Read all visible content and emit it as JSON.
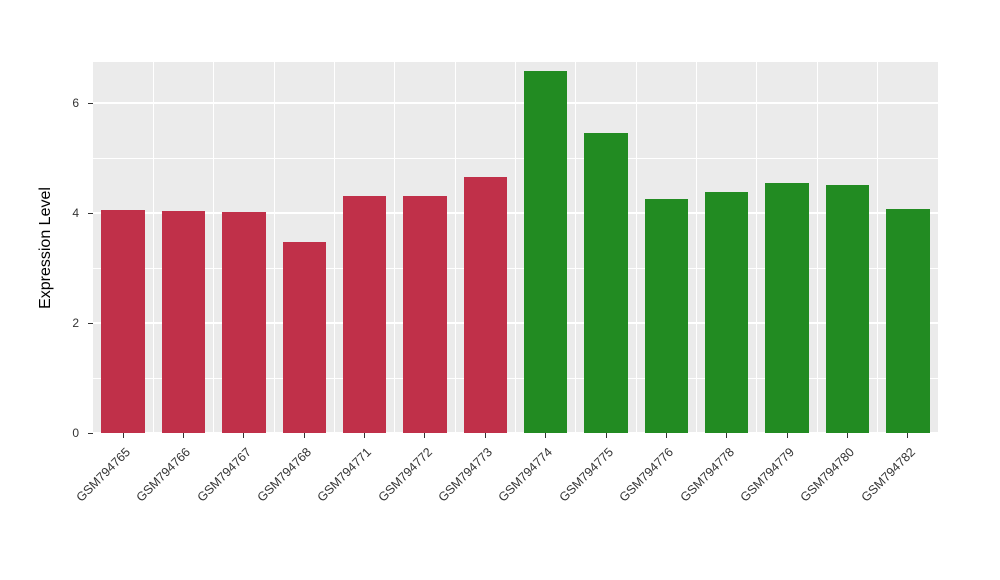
{
  "chart_data": {
    "type": "bar",
    "title": "",
    "ylabel": "Expression Level",
    "xlabel": "",
    "categories": [
      "GSM794765",
      "GSM794766",
      "GSM794767",
      "GSM794768",
      "GSM794771",
      "GSM794772",
      "GSM794773",
      "GSM794774",
      "GSM794775",
      "GSM794776",
      "GSM794778",
      "GSM794779",
      "GSM794780",
      "GSM794782"
    ],
    "values": [
      4.05,
      4.03,
      4.02,
      3.48,
      4.32,
      4.32,
      4.65,
      6.58,
      5.45,
      4.25,
      4.38,
      4.55,
      4.52,
      4.08
    ],
    "colors": [
      "#C03049",
      "#C03049",
      "#C03049",
      "#C03049",
      "#C03049",
      "#C03049",
      "#C03049",
      "#228B22",
      "#228B22",
      "#228B22",
      "#228B22",
      "#228B22",
      "#228B22",
      "#228B22"
    ],
    "group_colors": {
      "red_group": "#C03049",
      "green_group": "#228B22"
    },
    "ylim": [
      0,
      6.75
    ],
    "yticks": [
      0,
      2,
      4,
      6
    ],
    "yticks_minor": [
      1,
      3,
      5
    ],
    "grid": true,
    "legend": "none",
    "panel_bg": "#EBEBEB",
    "grid_color": "#FFFFFF",
    "tick_label_color": "#333333",
    "axis_title_color": "#000000"
  }
}
